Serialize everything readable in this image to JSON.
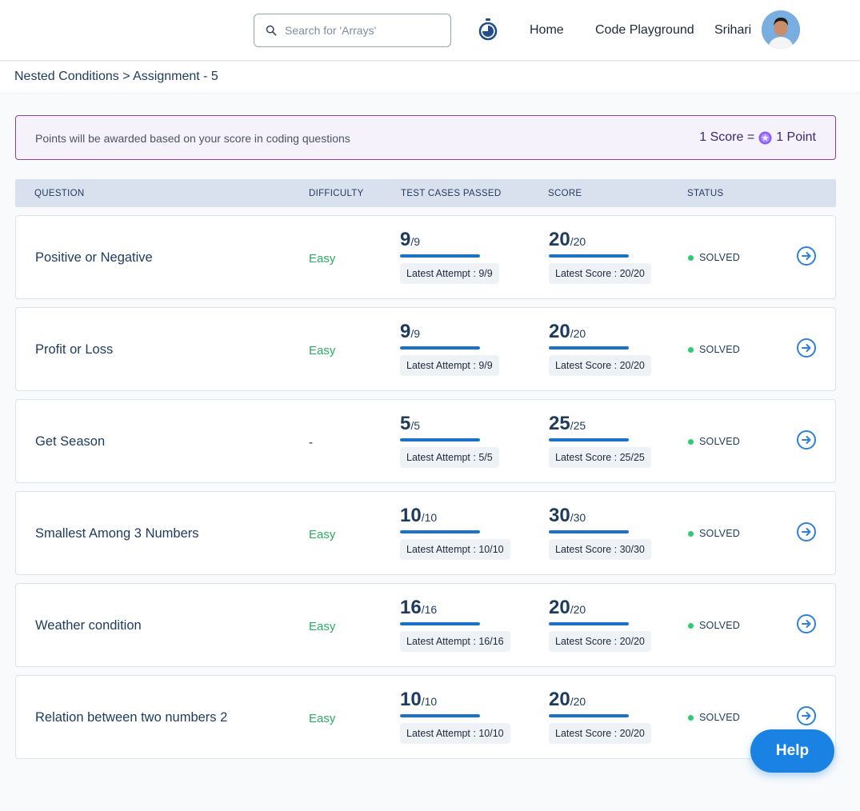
{
  "header": {
    "search_placeholder": "Search for 'Arrays'",
    "timer_icon": "stopwatch-icon",
    "nav": {
      "home": "Home",
      "code_playground": "Code Playground"
    },
    "user": {
      "name": "Srihari",
      "avatar_icon": "avatar-photo"
    }
  },
  "breadcrumb": {
    "text": "Nested Conditions > Assignment - 5"
  },
  "points_banner": {
    "message": "Points will be awarded based on your score in coding questions",
    "rule_left": "1 Score =",
    "coin_icon": "coin-star-icon",
    "rule_right": "1 Point"
  },
  "table": {
    "headers": {
      "question": "QUESTION",
      "difficulty": "DIFFICULTY",
      "test_cases": "TEST CASES PASSED",
      "score": "SCORE",
      "status": "STATUS"
    },
    "rows": [
      {
        "title": "Positive or Negative",
        "difficulty": "Easy",
        "passed": "9",
        "total_cases": "/9",
        "latest_attempt": "Latest Attempt : 9/9",
        "score": "20",
        "max_score": "/20",
        "latest_score": "Latest Score : 20/20",
        "status": "SOLVED",
        "cases_fraction": 1.0,
        "score_fraction": 1.0
      },
      {
        "title": "Profit or Loss",
        "difficulty": "Easy",
        "passed": "9",
        "total_cases": "/9",
        "latest_attempt": "Latest Attempt : 9/9",
        "score": "20",
        "max_score": "/20",
        "latest_score": "Latest Score : 20/20",
        "status": "SOLVED",
        "cases_fraction": 1.0,
        "score_fraction": 1.0
      },
      {
        "title": "Get Season",
        "difficulty": "-",
        "passed": "5",
        "total_cases": "/5",
        "latest_attempt": "Latest Attempt : 5/5",
        "score": "25",
        "max_score": "/25",
        "latest_score": "Latest Score : 25/25",
        "status": "SOLVED",
        "cases_fraction": 1.0,
        "score_fraction": 1.0
      },
      {
        "title": "Smallest Among 3 Numbers",
        "difficulty": "Easy",
        "passed": "10",
        "total_cases": "/10",
        "latest_attempt": "Latest Attempt : 10/10",
        "score": "30",
        "max_score": "/30",
        "latest_score": "Latest Score : 30/30",
        "status": "SOLVED",
        "cases_fraction": 1.0,
        "score_fraction": 1.0
      },
      {
        "title": "Weather condition",
        "difficulty": "Easy",
        "passed": "16",
        "total_cases": "/16",
        "latest_attempt": "Latest Attempt : 16/16",
        "score": "20",
        "max_score": "/20",
        "latest_score": "Latest Score : 20/20",
        "status": "SOLVED",
        "cases_fraction": 1.0,
        "score_fraction": 1.0
      },
      {
        "title": "Relation between two numbers 2",
        "difficulty": "Easy",
        "passed": "10",
        "total_cases": "/10",
        "latest_attempt": "Latest Attempt : 10/10",
        "score": "20",
        "max_score": "/20",
        "latest_score": "Latest Score : 20/20",
        "status": "SOLVED",
        "cases_fraction": 1.0,
        "score_fraction": 1.0
      }
    ]
  },
  "help_button": {
    "label": "Help"
  },
  "colors": {
    "accent_blue": "#1a73c8",
    "easy_green": "#27ae60",
    "solved_green": "#2ecc71",
    "banner_border": "#8e3e9c",
    "help_blue": "#1a82e2"
  }
}
